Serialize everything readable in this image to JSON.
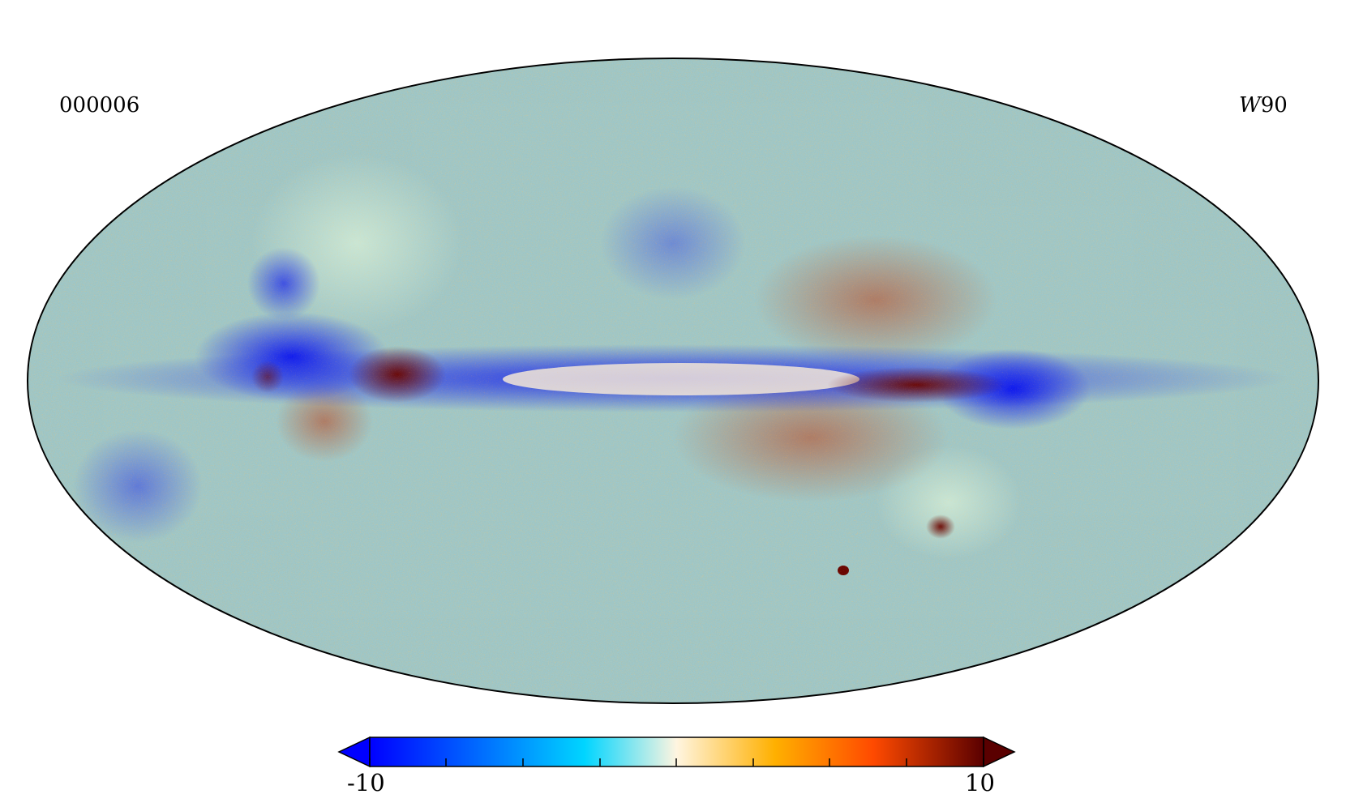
{
  "map": {
    "projection": "mollweide",
    "id_label": "000006",
    "band_label_prefix": "W",
    "band_label_number": "90"
  },
  "colorbar": {
    "min_label": "-10",
    "max_label": "10",
    "min_value": -10,
    "max_value": 10,
    "colors": [
      "#0000ff",
      "#0066ff",
      "#00d5ff",
      "#fff5e0",
      "#ffb000",
      "#ff4a00",
      "#5a0000"
    ],
    "extend": "both",
    "tick_count": 9
  }
}
